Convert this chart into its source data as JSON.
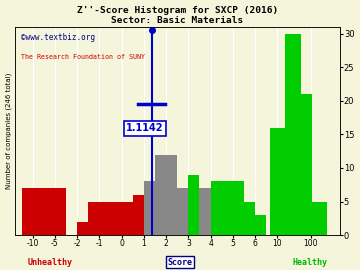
{
  "title": "Z''-Score Histogram for SXCP (2016)",
  "subtitle": "Sector: Basic Materials",
  "watermark1": "©www.textbiz.org",
  "watermark2": "The Research Foundation of SUNY",
  "marker_label": "1.1142",
  "tick_pos": [
    0,
    1,
    2,
    3,
    4,
    5,
    6,
    7,
    8,
    9,
    10,
    11,
    12.5
  ],
  "tick_labels": [
    "-10",
    "-5",
    "-2",
    "-1",
    "0",
    "1",
    "2",
    "3",
    "4",
    "5",
    "6",
    "10",
    "100"
  ],
  "bars": [
    [
      0.0,
      1.0,
      7,
      "#cc0000"
    ],
    [
      1.0,
      1.0,
      7,
      "#cc0000"
    ],
    [
      2.25,
      0.5,
      2,
      "#cc0000"
    ],
    [
      2.75,
      0.5,
      5,
      "#cc0000"
    ],
    [
      3.25,
      0.5,
      5,
      "#cc0000"
    ],
    [
      3.75,
      0.5,
      5,
      "#cc0000"
    ],
    [
      4.25,
      0.5,
      5,
      "#cc0000"
    ],
    [
      4.75,
      0.5,
      6,
      "#cc0000"
    ],
    [
      5.25,
      0.5,
      8,
      "#888888"
    ],
    [
      5.75,
      0.5,
      12,
      "#888888"
    ],
    [
      6.25,
      0.5,
      12,
      "#888888"
    ],
    [
      6.75,
      0.5,
      7,
      "#888888"
    ],
    [
      7.25,
      0.5,
      9,
      "#00cc00"
    ],
    [
      7.75,
      0.5,
      7,
      "#888888"
    ],
    [
      8.25,
      0.5,
      8,
      "#00cc00"
    ],
    [
      8.75,
      0.5,
      8,
      "#00cc00"
    ],
    [
      9.25,
      0.5,
      8,
      "#00cc00"
    ],
    [
      9.75,
      0.5,
      5,
      "#00cc00"
    ],
    [
      10.25,
      0.5,
      3,
      "#00cc00"
    ],
    [
      11.0,
      0.7,
      16,
      "#00cc00"
    ],
    [
      11.7,
      0.7,
      30,
      "#00cc00"
    ],
    [
      12.2,
      0.7,
      21,
      "#00cc00"
    ],
    [
      12.9,
      0.7,
      5,
      "#00cc00"
    ]
  ],
  "xlim": [
    -0.8,
    13.8
  ],
  "ylim": [
    0,
    31
  ],
  "yticks": [
    0,
    5,
    10,
    15,
    20,
    25,
    30
  ],
  "marker_x": 5.35,
  "bg_color": "#f5f5dc",
  "watermark1_color": "#000080",
  "watermark2_color": "#cc0000",
  "marker_color": "#0000cc",
  "unhealthy_color": "#cc0000",
  "healthy_color": "#00bb00",
  "score_color": "#000080"
}
